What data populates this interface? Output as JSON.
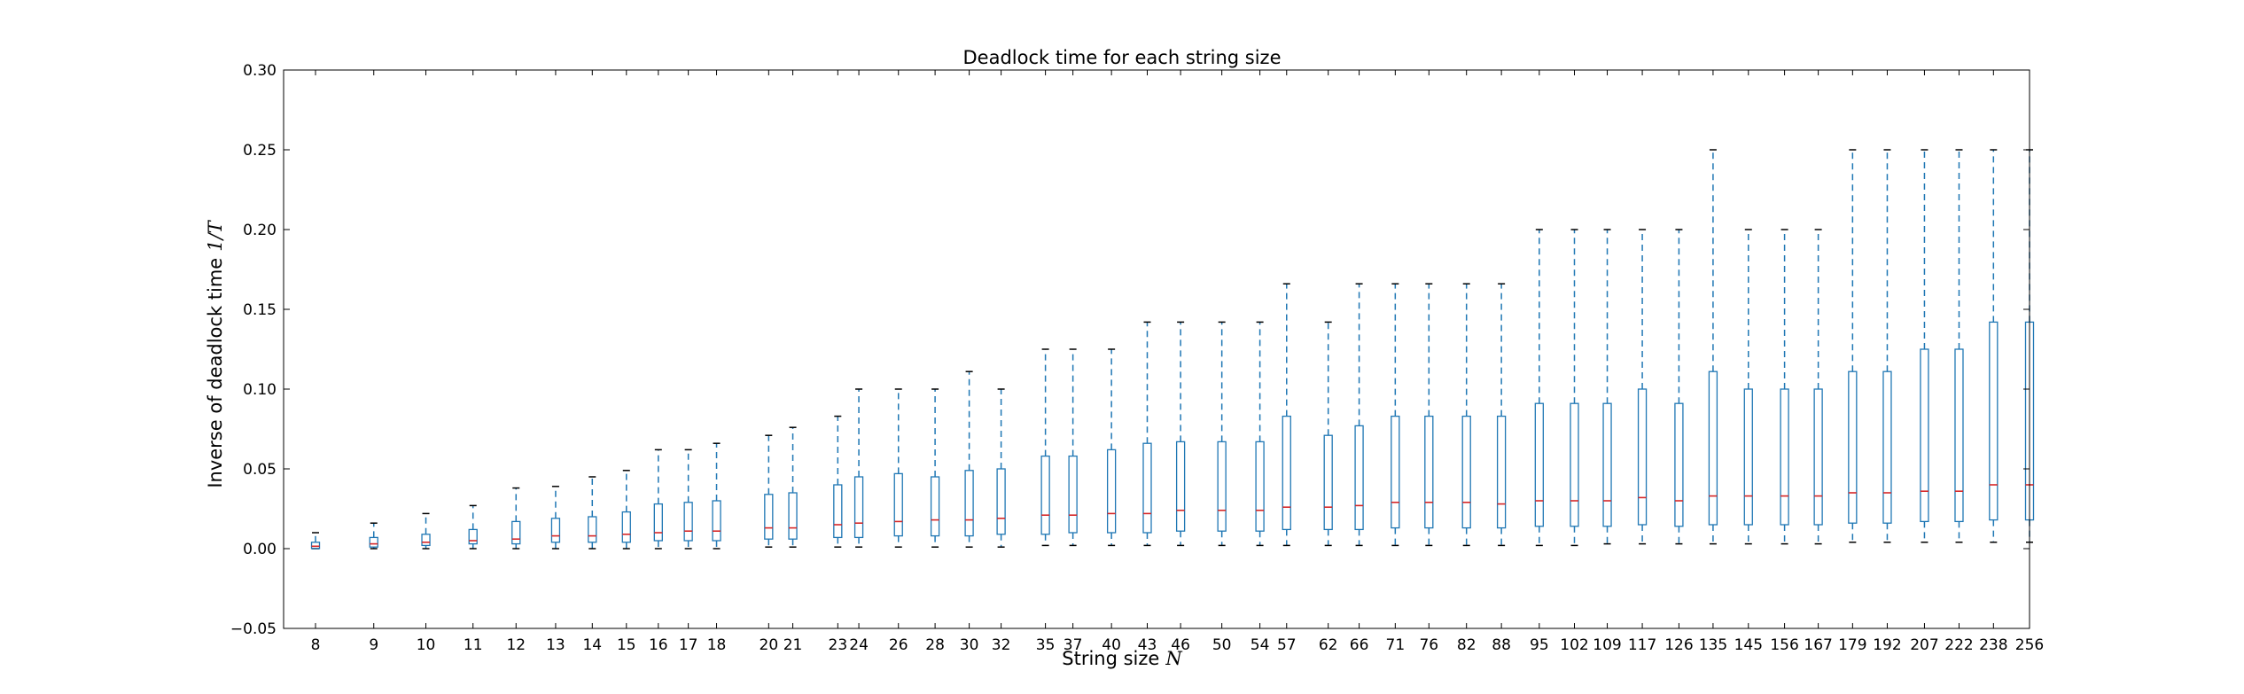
{
  "chart_data": {
    "type": "box",
    "title": "Deadlock time for each string size",
    "xlabel": "String size",
    "xlabel_var": "N",
    "ylabel": "Inverse of deadlock time",
    "ylabel_var": "1/T",
    "ylim": [
      -0.05,
      0.3
    ],
    "xlim": [
      7.5,
      256
    ],
    "yticks": [
      -0.05,
      0.0,
      0.05,
      0.1,
      0.15,
      0.2,
      0.25,
      0.3
    ],
    "ytick_labels": [
      "−0.05",
      "0.00",
      "0.05",
      "0.10",
      "0.15",
      "0.20",
      "0.25",
      "0.30"
    ],
    "x_scale": "log",
    "grid": false,
    "legend": "none",
    "colors": {
      "box": "#1f77b4",
      "median": "#d62728",
      "whisker": "#1f77b4",
      "cap": "#000000",
      "axis": "#000000"
    },
    "boxes": [
      {
        "n": 8,
        "q1": 0.0,
        "median": 0.0015,
        "q3": 0.004,
        "whislo": 0.0,
        "whishi": 0.01
      },
      {
        "n": 9,
        "q1": 0.001,
        "median": 0.003,
        "q3": 0.007,
        "whislo": 0.0,
        "whishi": 0.016
      },
      {
        "n": 10,
        "q1": 0.002,
        "median": 0.004,
        "q3": 0.009,
        "whislo": 0.0,
        "whishi": 0.022
      },
      {
        "n": 11,
        "q1": 0.003,
        "median": 0.005,
        "q3": 0.012,
        "whislo": 0.0,
        "whishi": 0.027
      },
      {
        "n": 12,
        "q1": 0.003,
        "median": 0.006,
        "q3": 0.017,
        "whislo": 0.0,
        "whishi": 0.038
      },
      {
        "n": 13,
        "q1": 0.004,
        "median": 0.008,
        "q3": 0.019,
        "whislo": 0.0,
        "whishi": 0.039
      },
      {
        "n": 14,
        "q1": 0.004,
        "median": 0.008,
        "q3": 0.02,
        "whislo": 0.0,
        "whishi": 0.045
      },
      {
        "n": 15,
        "q1": 0.004,
        "median": 0.009,
        "q3": 0.023,
        "whislo": 0.0,
        "whishi": 0.049
      },
      {
        "n": 16,
        "q1": 0.005,
        "median": 0.01,
        "q3": 0.028,
        "whislo": 0.0,
        "whishi": 0.062
      },
      {
        "n": 17,
        "q1": 0.005,
        "median": 0.011,
        "q3": 0.029,
        "whislo": 0.0,
        "whishi": 0.062
      },
      {
        "n": 18,
        "q1": 0.005,
        "median": 0.011,
        "q3": 0.03,
        "whislo": 0.0,
        "whishi": 0.066
      },
      {
        "n": 20,
        "q1": 0.006,
        "median": 0.013,
        "q3": 0.034,
        "whislo": 0.001,
        "whishi": 0.071
      },
      {
        "n": 21,
        "q1": 0.006,
        "median": 0.013,
        "q3": 0.035,
        "whislo": 0.001,
        "whishi": 0.076
      },
      {
        "n": 23,
        "q1": 0.007,
        "median": 0.015,
        "q3": 0.04,
        "whislo": 0.001,
        "whishi": 0.083
      },
      {
        "n": 24,
        "q1": 0.007,
        "median": 0.016,
        "q3": 0.045,
        "whislo": 0.001,
        "whishi": 0.1
      },
      {
        "n": 26,
        "q1": 0.008,
        "median": 0.017,
        "q3": 0.047,
        "whislo": 0.001,
        "whishi": 0.1
      },
      {
        "n": 28,
        "q1": 0.008,
        "median": 0.018,
        "q3": 0.045,
        "whislo": 0.001,
        "whishi": 0.1
      },
      {
        "n": 30,
        "q1": 0.008,
        "median": 0.018,
        "q3": 0.049,
        "whislo": 0.001,
        "whishi": 0.111
      },
      {
        "n": 32,
        "q1": 0.009,
        "median": 0.019,
        "q3": 0.05,
        "whislo": 0.001,
        "whishi": 0.1
      },
      {
        "n": 35,
        "q1": 0.009,
        "median": 0.021,
        "q3": 0.058,
        "whislo": 0.002,
        "whishi": 0.125
      },
      {
        "n": 37,
        "q1": 0.01,
        "median": 0.021,
        "q3": 0.058,
        "whislo": 0.002,
        "whishi": 0.125
      },
      {
        "n": 40,
        "q1": 0.01,
        "median": 0.022,
        "q3": 0.062,
        "whislo": 0.002,
        "whishi": 0.125
      },
      {
        "n": 43,
        "q1": 0.01,
        "median": 0.022,
        "q3": 0.066,
        "whislo": 0.002,
        "whishi": 0.142
      },
      {
        "n": 46,
        "q1": 0.011,
        "median": 0.024,
        "q3": 0.067,
        "whislo": 0.002,
        "whishi": 0.142
      },
      {
        "n": 50,
        "q1": 0.011,
        "median": 0.024,
        "q3": 0.067,
        "whislo": 0.002,
        "whishi": 0.142
      },
      {
        "n": 54,
        "q1": 0.011,
        "median": 0.024,
        "q3": 0.067,
        "whislo": 0.002,
        "whishi": 0.142
      },
      {
        "n": 57,
        "q1": 0.012,
        "median": 0.026,
        "q3": 0.083,
        "whislo": 0.002,
        "whishi": 0.166
      },
      {
        "n": 62,
        "q1": 0.012,
        "median": 0.026,
        "q3": 0.071,
        "whislo": 0.002,
        "whishi": 0.142
      },
      {
        "n": 66,
        "q1": 0.012,
        "median": 0.027,
        "q3": 0.077,
        "whislo": 0.002,
        "whishi": 0.166
      },
      {
        "n": 71,
        "q1": 0.013,
        "median": 0.029,
        "q3": 0.083,
        "whislo": 0.002,
        "whishi": 0.166
      },
      {
        "n": 76,
        "q1": 0.013,
        "median": 0.029,
        "q3": 0.083,
        "whislo": 0.002,
        "whishi": 0.166
      },
      {
        "n": 82,
        "q1": 0.013,
        "median": 0.029,
        "q3": 0.083,
        "whislo": 0.002,
        "whishi": 0.166
      },
      {
        "n": 88,
        "q1": 0.013,
        "median": 0.028,
        "q3": 0.083,
        "whislo": 0.002,
        "whishi": 0.166
      },
      {
        "n": 95,
        "q1": 0.014,
        "median": 0.03,
        "q3": 0.091,
        "whislo": 0.002,
        "whishi": 0.2
      },
      {
        "n": 102,
        "q1": 0.014,
        "median": 0.03,
        "q3": 0.091,
        "whislo": 0.002,
        "whishi": 0.2
      },
      {
        "n": 109,
        "q1": 0.014,
        "median": 0.03,
        "q3": 0.091,
        "whislo": 0.003,
        "whishi": 0.2
      },
      {
        "n": 117,
        "q1": 0.015,
        "median": 0.032,
        "q3": 0.1,
        "whislo": 0.003,
        "whishi": 0.2
      },
      {
        "n": 126,
        "q1": 0.014,
        "median": 0.03,
        "q3": 0.091,
        "whislo": 0.003,
        "whishi": 0.2
      },
      {
        "n": 135,
        "q1": 0.015,
        "median": 0.033,
        "q3": 0.111,
        "whislo": 0.003,
        "whishi": 0.25
      },
      {
        "n": 145,
        "q1": 0.015,
        "median": 0.033,
        "q3": 0.1,
        "whislo": 0.003,
        "whishi": 0.2
      },
      {
        "n": 156,
        "q1": 0.015,
        "median": 0.033,
        "q3": 0.1,
        "whislo": 0.003,
        "whishi": 0.2
      },
      {
        "n": 167,
        "q1": 0.015,
        "median": 0.033,
        "q3": 0.1,
        "whislo": 0.003,
        "whishi": 0.2
      },
      {
        "n": 179,
        "q1": 0.016,
        "median": 0.035,
        "q3": 0.111,
        "whislo": 0.004,
        "whishi": 0.25
      },
      {
        "n": 192,
        "q1": 0.016,
        "median": 0.035,
        "q3": 0.111,
        "whislo": 0.004,
        "whishi": 0.25
      },
      {
        "n": 207,
        "q1": 0.017,
        "median": 0.036,
        "q3": 0.125,
        "whislo": 0.004,
        "whishi": 0.25
      },
      {
        "n": 222,
        "q1": 0.017,
        "median": 0.036,
        "q3": 0.125,
        "whislo": 0.004,
        "whishi": 0.25
      },
      {
        "n": 238,
        "q1": 0.018,
        "median": 0.04,
        "q3": 0.142,
        "whislo": 0.004,
        "whishi": 0.25
      },
      {
        "n": 256,
        "q1": 0.018,
        "median": 0.04,
        "q3": 0.142,
        "whislo": 0.004,
        "whishi": 0.25
      }
    ]
  }
}
